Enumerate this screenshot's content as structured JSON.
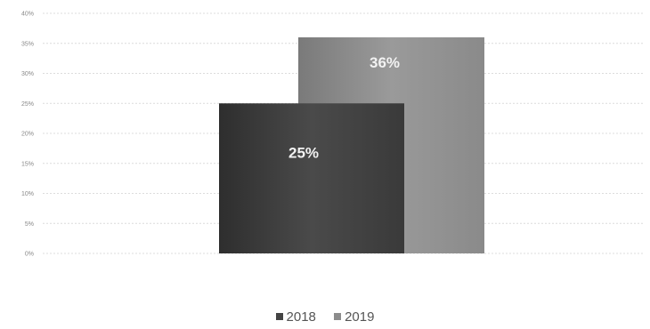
{
  "chart_data": {
    "type": "bar",
    "title": "",
    "xlabel": "",
    "ylabel": "",
    "ylim": [
      0,
      40
    ],
    "y_ticks": [
      "0%",
      "5%",
      "10%",
      "15%",
      "20%",
      "25%",
      "30%",
      "35%",
      "40%"
    ],
    "grid": true,
    "legend_position": "bottom",
    "series": [
      {
        "name": "2018",
        "values": [
          25
        ],
        "data_labels": [
          "25%"
        ],
        "color": "#444444"
      },
      {
        "name": "2019",
        "values": [
          36
        ],
        "data_labels": [
          "36%"
        ],
        "color": "#8c8c8c"
      }
    ]
  }
}
